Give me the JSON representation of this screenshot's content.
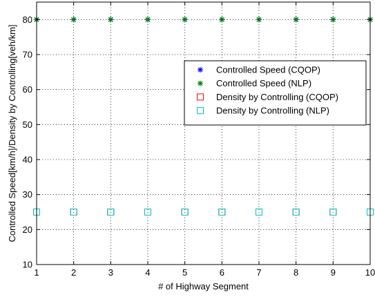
{
  "chart_data": {
    "type": "scatter",
    "title": "",
    "xlabel": "# of Highway Segment",
    "ylabel": "Controlled Speed[km/h]/Density by Controlling[veh/km]",
    "xlim": [
      1,
      10
    ],
    "ylim": [
      10,
      85
    ],
    "xticks": [
      1,
      2,
      3,
      4,
      5,
      6,
      7,
      8,
      9,
      10
    ],
    "yticks": [
      10,
      20,
      30,
      40,
      50,
      60,
      70,
      80
    ],
    "grid": true,
    "legend_position": "top-right",
    "x": [
      1,
      2,
      3,
      4,
      5,
      6,
      7,
      8,
      9,
      10
    ],
    "series": [
      {
        "name": "Controlled Speed (CQOP)",
        "marker": "star",
        "color": "#0000ff",
        "values": [
          80,
          80,
          80,
          80,
          80,
          80,
          80,
          80,
          80,
          80
        ]
      },
      {
        "name": "Controlled Speed (NLP)",
        "marker": "star",
        "color": "#008000",
        "values": [
          80,
          80,
          80,
          80,
          80,
          80,
          80,
          80,
          80,
          80
        ]
      },
      {
        "name": "Density by Controlling (CQOP)",
        "marker": "square",
        "color": "#ff0000",
        "values": [
          25,
          25,
          25,
          25,
          25,
          25,
          25,
          25,
          25,
          25
        ]
      },
      {
        "name": "Density by Controlling (NLP)",
        "marker": "square",
        "color": "#00bfbf",
        "values": [
          25,
          25,
          25,
          25,
          25,
          25,
          25,
          25,
          25,
          25
        ]
      }
    ]
  }
}
